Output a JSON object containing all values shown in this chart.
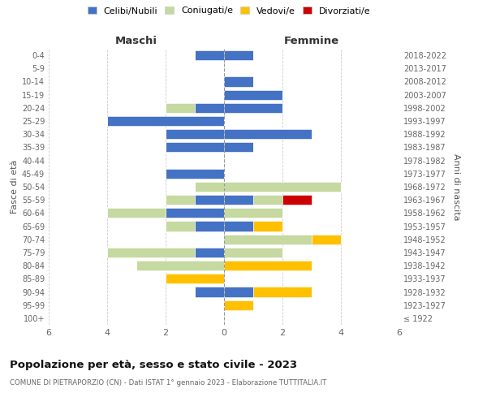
{
  "age_groups": [
    "100+",
    "95-99",
    "90-94",
    "85-89",
    "80-84",
    "75-79",
    "70-74",
    "65-69",
    "60-64",
    "55-59",
    "50-54",
    "45-49",
    "40-44",
    "35-39",
    "30-34",
    "25-29",
    "20-24",
    "15-19",
    "10-14",
    "5-9",
    "0-4"
  ],
  "birth_years": [
    "≤ 1922",
    "1923-1927",
    "1928-1932",
    "1933-1937",
    "1938-1942",
    "1943-1947",
    "1948-1952",
    "1953-1957",
    "1958-1962",
    "1963-1967",
    "1968-1972",
    "1973-1977",
    "1978-1982",
    "1983-1987",
    "1988-1992",
    "1993-1997",
    "1998-2002",
    "2003-2007",
    "2008-2012",
    "2013-2017",
    "2018-2022"
  ],
  "maschi": {
    "celibi": [
      0,
      0,
      1,
      0,
      0,
      1,
      0,
      1,
      2,
      1,
      0,
      2,
      0,
      2,
      2,
      4,
      1,
      0,
      0,
      0,
      1
    ],
    "coniugati": [
      0,
      0,
      0,
      0,
      3,
      3,
      0,
      1,
      2,
      1,
      1,
      0,
      0,
      0,
      0,
      0,
      1,
      0,
      0,
      0,
      0
    ],
    "vedovi": [
      0,
      0,
      0,
      2,
      0,
      0,
      0,
      0,
      0,
      0,
      0,
      0,
      0,
      0,
      0,
      0,
      0,
      0,
      0,
      0,
      0
    ],
    "divorziati": [
      0,
      0,
      0,
      0,
      0,
      0,
      0,
      0,
      0,
      0,
      0,
      0,
      0,
      0,
      0,
      0,
      0,
      0,
      0,
      0,
      0
    ]
  },
  "femmine": {
    "celibi": [
      0,
      0,
      1,
      0,
      0,
      0,
      0,
      1,
      0,
      1,
      0,
      0,
      0,
      1,
      3,
      0,
      2,
      2,
      1,
      0,
      1
    ],
    "coniugati": [
      0,
      0,
      0,
      0,
      0,
      2,
      3,
      0,
      2,
      1,
      4,
      0,
      0,
      0,
      0,
      0,
      0,
      0,
      0,
      0,
      0
    ],
    "vedovi": [
      0,
      1,
      2,
      0,
      3,
      0,
      1,
      1,
      0,
      0,
      0,
      0,
      0,
      0,
      0,
      0,
      0,
      0,
      0,
      0,
      0
    ],
    "divorziati": [
      0,
      0,
      0,
      0,
      0,
      0,
      0,
      0,
      0,
      1,
      0,
      0,
      0,
      0,
      0,
      0,
      0,
      0,
      0,
      0,
      0
    ]
  },
  "colors": {
    "celibi": "#4472c4",
    "coniugati": "#c5d9a0",
    "vedovi": "#ffc000",
    "divorziati": "#cc0000"
  },
  "legend_labels": [
    "Celibi/Nubili",
    "Coniugati/e",
    "Vedovi/e",
    "Divorziati/e"
  ],
  "xlabel_left": "Maschi",
  "xlabel_right": "Femmine",
  "ylabel_left": "Fasce di età",
  "ylabel_right": "Anni di nascita",
  "title": "Popolazione per età, sesso e stato civile - 2023",
  "subtitle": "COMUNE DI PIETRAPORZIO (CN) - Dati ISTAT 1° gennaio 2023 - Elaborazione TUTTITALIA.IT",
  "xlim": 6,
  "background_color": "#ffffff",
  "grid_color": "#cccccc"
}
